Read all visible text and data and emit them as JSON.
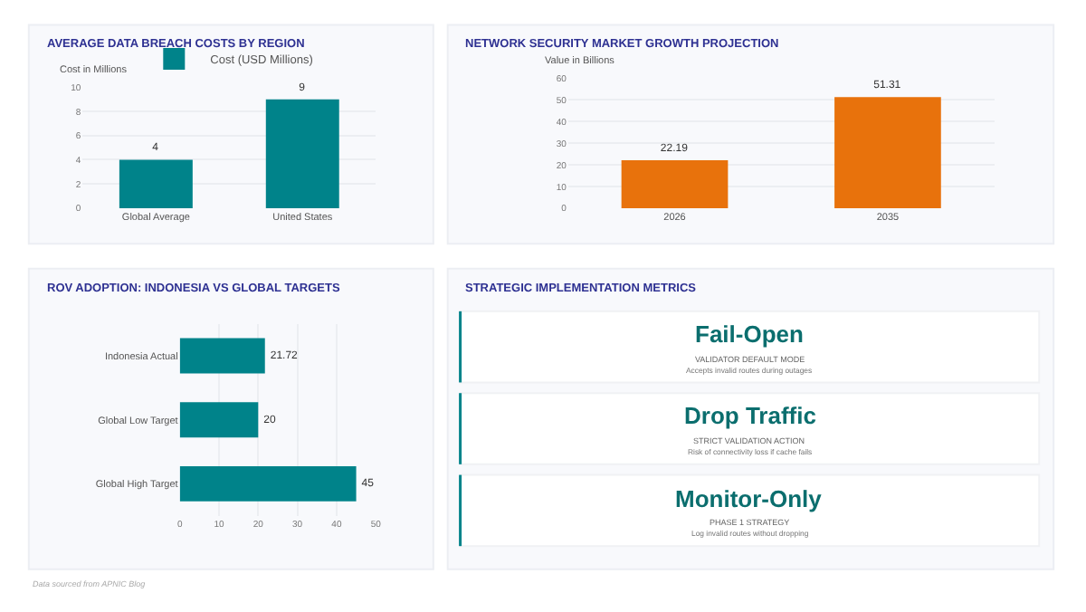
{
  "chart_data": [
    {
      "type": "bar",
      "title": "AVERAGE DATA BREACH COSTS BY REGION",
      "ylabel": "Cost in Millions",
      "categories": [
        "Global Average",
        "United States"
      ],
      "series": [
        {
          "name": "Cost (USD Millions)",
          "color": "#00838a",
          "values": [
            4,
            9
          ]
        }
      ],
      "ylim": [
        0,
        10
      ],
      "yticks": [
        0,
        2,
        4,
        6,
        8,
        10
      ],
      "grid": "y",
      "legend": "top",
      "data_labels": true
    },
    {
      "type": "bar",
      "title": "NETWORK SECURITY MARKET GROWTH PROJECTION",
      "ylabel": "Value in Billions",
      "categories": [
        "2026",
        "2035"
      ],
      "series": [
        {
          "color": "#e8720c",
          "values": [
            22.19,
            51.31
          ]
        }
      ],
      "ylim": [
        0,
        60
      ],
      "yticks": [
        0,
        10,
        20,
        30,
        40,
        50,
        60
      ],
      "grid": "y",
      "data_labels": true
    },
    {
      "type": "bar",
      "orientation": "horizontal",
      "title": "ROV ADOPTION: INDONESIA VS GLOBAL TARGETS",
      "categories": [
        "Indonesia Actual",
        "Global Low Target",
        "Global High Target"
      ],
      "series": [
        {
          "color": "#00838a",
          "values": [
            21.72,
            20,
            45
          ]
        }
      ],
      "xlim": [
        0,
        50
      ],
      "xticks": [
        0,
        10,
        20,
        30,
        40,
        50
      ],
      "grid": "x",
      "data_labels": true,
      "annotations": [
        "Data sourced from APNIC Blog"
      ]
    },
    {
      "type": "other",
      "title": "STRATEGIC IMPLEMENTATION METRICS",
      "annotations": [
        "Fail-Open",
        "VALIDATOR DEFAULT MODE",
        "Accepts invalid routes during outages",
        "Drop Traffic",
        "STRICT VALIDATION ACTION",
        "Risk of connectivity loss if cache fails",
        "Monitor-Only",
        "PHASE 1 STRATEGY",
        "Log invalid routes without dropping"
      ]
    }
  ]
}
